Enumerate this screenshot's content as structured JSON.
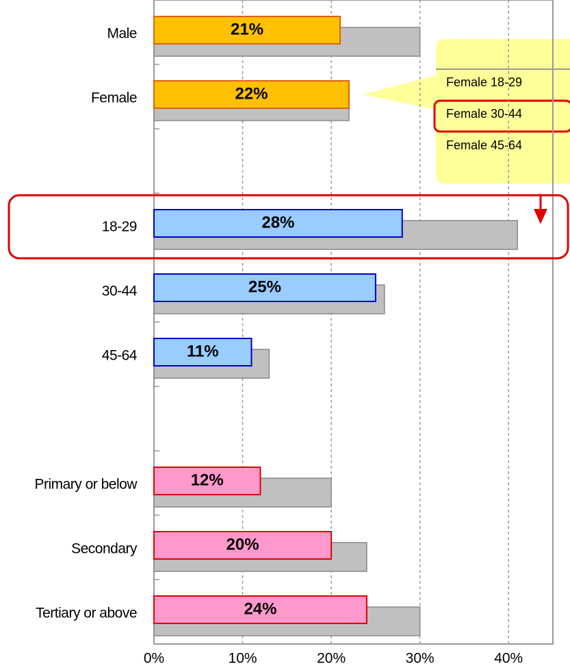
{
  "chart_data": {
    "type": "bar",
    "orientation": "horizontal",
    "categories": [
      "Male",
      "Female",
      null,
      "18-29",
      "30-44",
      "45-64",
      null,
      "Primary or below",
      "Secondary",
      "Tertiary or above"
    ],
    "series": [
      {
        "colors": [
          "#FFC000",
          "#FFC000",
          null,
          "#99CCFF",
          "#99CCFF",
          "#99CCFF",
          null,
          "#FF99CC",
          "#FF99CC",
          "#FF99CC"
        ],
        "values": [
          21,
          22,
          null,
          28,
          25,
          11,
          null,
          12,
          20,
          24
        ],
        "value_labels": [
          "21%",
          "22%",
          null,
          "28%",
          "25%",
          "11%",
          null,
          "12%",
          "20%",
          "24%"
        ]
      },
      {
        "color": "#C0C0C0",
        "values": [
          30,
          22,
          null,
          41,
          26,
          13,
          null,
          20,
          24,
          30
        ]
      }
    ],
    "xlim": [
      0,
      45
    ],
    "xticks": [
      {
        "value": 0,
        "label": "0%"
      },
      {
        "value": 10,
        "label": "10%"
      },
      {
        "value": 20,
        "label": "20%"
      },
      {
        "value": 30,
        "label": "30%"
      },
      {
        "value": 40,
        "label": "40%"
      }
    ],
    "grid": true,
    "callout": {
      "items": [
        "Female 18-29",
        "Female 30-44",
        "Female 45-64"
      ]
    }
  }
}
